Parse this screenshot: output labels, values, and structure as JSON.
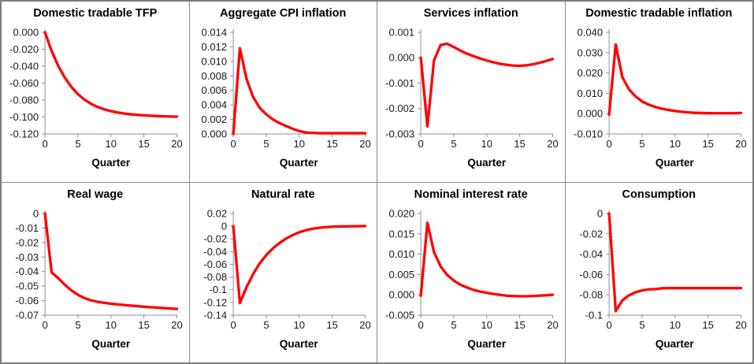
{
  "style": {
    "line_color": "#ff0000",
    "axis_color": "#8f8f8f",
    "text_color": "#191919",
    "title_color": "#000000",
    "panel_border_color": "#8a8a8a",
    "outer_border_color": "#7b7b7b",
    "background": "#ffffff"
  },
  "chart_data": [
    {
      "type": "line",
      "title": "Domestic tradable TFP",
      "xlabel": "Quarter",
      "xlim": [
        0,
        20
      ],
      "ylim": [
        -0.12,
        0
      ],
      "xticks": [
        0,
        5,
        10,
        15,
        20
      ],
      "ytick_values": [
        0,
        -0.02,
        -0.04,
        -0.06,
        -0.08,
        -0.1,
        -0.12
      ],
      "ytick_labels": [
        "0.000",
        "-0.020",
        "-0.040",
        "-0.060",
        "-0.080",
        "-0.100",
        "-0.120"
      ],
      "x": [
        0,
        1,
        2,
        3,
        4,
        5,
        6,
        7,
        8,
        9,
        10,
        11,
        12,
        13,
        14,
        15,
        16,
        17,
        18,
        19,
        20
      ],
      "values": [
        0,
        -0.022,
        -0.0395,
        -0.0535,
        -0.0645,
        -0.073,
        -0.0795,
        -0.0845,
        -0.0882,
        -0.091,
        -0.0931,
        -0.0947,
        -0.0959,
        -0.0968,
        -0.0975,
        -0.0981,
        -0.0985,
        -0.0989,
        -0.0992,
        -0.0994,
        -0.0996
      ]
    },
    {
      "type": "line",
      "title": "Aggregate CPI inflation",
      "xlabel": "Quarter",
      "xlim": [
        0,
        20
      ],
      "ylim": [
        0,
        0.014
      ],
      "xticks": [
        0,
        5,
        10,
        15,
        20
      ],
      "ytick_values": [
        0.014,
        0.012,
        0.01,
        0.008,
        0.006,
        0.004,
        0.002,
        0
      ],
      "ytick_labels": [
        "0.014",
        "0.012",
        "0.010",
        "0.008",
        "0.006",
        "0.004",
        "0.002",
        "0.000"
      ],
      "x": [
        0,
        1,
        2,
        3,
        4,
        5,
        6,
        7,
        8,
        9,
        10,
        11,
        12,
        13,
        14,
        15,
        16,
        17,
        18,
        19,
        20
      ],
      "values": [
        0,
        0.0118,
        0.0076,
        0.0051,
        0.0036,
        0.0027,
        0.002,
        0.0015,
        0.0011,
        0.0007,
        0.0004,
        0.0002,
        0.00015,
        0.0001,
        0.0001,
        0.0001,
        0.0001,
        0.0001,
        0.0001,
        0.0001,
        0.0001
      ]
    },
    {
      "type": "line",
      "title": "Services inflation",
      "xlabel": "Quarter",
      "xlim": [
        0,
        20
      ],
      "ylim": [
        -0.003,
        0.001
      ],
      "xticks": [
        0,
        5,
        10,
        15,
        20
      ],
      "ytick_values": [
        0.001,
        0,
        -0.001,
        -0.002,
        -0.003
      ],
      "ytick_labels": [
        "0.001",
        "0.000",
        "-0.001",
        "-0.002",
        "-0.003"
      ],
      "x": [
        0,
        1,
        2,
        3,
        4,
        5,
        6,
        7,
        8,
        9,
        10,
        11,
        12,
        13,
        14,
        15,
        16,
        17,
        18,
        19,
        20
      ],
      "values": [
        0,
        -0.0027,
        -0.0001,
        0.0005,
        0.00055,
        0.00042,
        0.00028,
        0.00016,
        6e-05,
        -3e-05,
        -0.00011,
        -0.00018,
        -0.00024,
        -0.00028,
        -0.00031,
        -0.00032,
        -0.0003,
        -0.00026,
        -0.0002,
        -0.00013,
        -5e-05
      ]
    },
    {
      "type": "line",
      "title": "Domestic tradable inflation",
      "xlabel": "Quarter",
      "xlim": [
        0,
        20
      ],
      "ylim": [
        -0.01,
        0.04
      ],
      "xticks": [
        0,
        5,
        10,
        15,
        20
      ],
      "ytick_values": [
        0.04,
        0.03,
        0.02,
        0.01,
        0,
        -0.01
      ],
      "ytick_labels": [
        "0.040",
        "0.030",
        "0.020",
        "0.010",
        "0.000",
        "-0.010"
      ],
      "x": [
        0,
        1,
        2,
        3,
        4,
        5,
        6,
        7,
        8,
        9,
        10,
        11,
        12,
        13,
        14,
        15,
        16,
        17,
        18,
        19,
        20
      ],
      "values": [
        -0.0005,
        0.034,
        0.018,
        0.012,
        0.0085,
        0.006,
        0.0044,
        0.0033,
        0.0024,
        0.0018,
        0.0013,
        0.0009,
        0.0006,
        0.0004,
        0.0003,
        0.0002,
        0.0002,
        0.0002,
        0.0002,
        0.0002,
        0.0003
      ]
    },
    {
      "type": "line",
      "title": "Real wage",
      "xlabel": "Quarter",
      "xlim": [
        0,
        20
      ],
      "ylim": [
        -0.07,
        0
      ],
      "xticks": [
        0,
        5,
        10,
        15,
        20
      ],
      "ytick_values": [
        0,
        -0.01,
        -0.02,
        -0.03,
        -0.04,
        -0.05,
        -0.06,
        -0.07
      ],
      "ytick_labels": [
        "0",
        "-0.01",
        "-0.02",
        "-0.03",
        "-0.04",
        "-0.05",
        "-0.06",
        "-0.07"
      ],
      "x": [
        0,
        1,
        2,
        3,
        4,
        5,
        6,
        7,
        8,
        9,
        10,
        11,
        12,
        13,
        14,
        15,
        16,
        17,
        18,
        19,
        20
      ],
      "values": [
        0,
        -0.0405,
        -0.0445,
        -0.049,
        -0.053,
        -0.056,
        -0.0583,
        -0.0598,
        -0.0608,
        -0.0615,
        -0.0621,
        -0.0626,
        -0.063,
        -0.0634,
        -0.0638,
        -0.0642,
        -0.0645,
        -0.0648,
        -0.0651,
        -0.0654,
        -0.0657
      ]
    },
    {
      "type": "line",
      "title": "Natural rate",
      "xlabel": "Quarter",
      "xlim": [
        0,
        20
      ],
      "ylim": [
        -0.14,
        0.02
      ],
      "xticks": [
        0,
        5,
        10,
        15,
        20
      ],
      "ytick_values": [
        0.02,
        0,
        -0.02,
        -0.04,
        -0.06,
        -0.08,
        -0.1,
        -0.12,
        -0.14
      ],
      "ytick_labels": [
        "0.02",
        "0",
        "-0.02",
        "-0.04",
        "-0.06",
        "-0.08",
        "-0.1",
        "-0.12",
        "-0.14"
      ],
      "x": [
        0,
        1,
        2,
        3,
        4,
        5,
        6,
        7,
        8,
        9,
        10,
        11,
        12,
        13,
        14,
        15,
        16,
        17,
        18,
        19,
        20
      ],
      "values": [
        0,
        -0.121,
        -0.096,
        -0.0755,
        -0.0585,
        -0.0455,
        -0.035,
        -0.0265,
        -0.0195,
        -0.014,
        -0.0095,
        -0.0063,
        -0.004,
        -0.0025,
        -0.0015,
        -0.0008,
        -0.0004,
        -0.0002,
        -0.0001,
        0,
        0.0003
      ]
    },
    {
      "type": "line",
      "title": "Nominal interest rate",
      "xlabel": "Quarter",
      "xlim": [
        0,
        20
      ],
      "ylim": [
        -0.005,
        0.02
      ],
      "xticks": [
        0,
        5,
        10,
        15,
        20
      ],
      "ytick_values": [
        0.02,
        0.015,
        0.01,
        0.005,
        0,
        -0.005
      ],
      "ytick_labels": [
        "0.020",
        "0.015",
        "0.010",
        "0.005",
        "0.000",
        "-0.005"
      ],
      "x": [
        0,
        1,
        2,
        3,
        4,
        5,
        6,
        7,
        8,
        9,
        10,
        11,
        12,
        13,
        14,
        15,
        16,
        17,
        18,
        19,
        20
      ],
      "values": [
        -0.0002,
        0.0177,
        0.0105,
        0.007,
        0.0049,
        0.0035,
        0.0025,
        0.0018,
        0.0012,
        0.0008,
        0.0005,
        0.0002,
        0,
        -0.0002,
        -0.0003,
        -0.00035,
        -0.00035,
        -0.0003,
        -0.0002,
        -0.0001,
        0
      ]
    },
    {
      "type": "line",
      "title": "Consumption",
      "xlabel": "Quarter",
      "xlim": [
        0,
        20
      ],
      "ylim": [
        -0.1,
        0
      ],
      "xticks": [
        0,
        5,
        10,
        15,
        20
      ],
      "ytick_values": [
        0,
        -0.02,
        -0.04,
        -0.06,
        -0.08,
        -0.1
      ],
      "ytick_labels": [
        "0",
        "-0.02",
        "-0.04",
        "-0.06",
        "-0.08",
        "-0.1"
      ],
      "x": [
        0,
        1,
        2,
        3,
        4,
        5,
        6,
        7,
        8,
        9,
        10,
        11,
        12,
        13,
        14,
        15,
        16,
        17,
        18,
        19,
        20
      ],
      "values": [
        0,
        -0.096,
        -0.0855,
        -0.0805,
        -0.0775,
        -0.0757,
        -0.0746,
        -0.0744,
        -0.0736,
        -0.0734,
        -0.0734,
        -0.0734,
        -0.0734,
        -0.0734,
        -0.0734,
        -0.0734,
        -0.0734,
        -0.0734,
        -0.0734,
        -0.0734,
        -0.0734
      ]
    }
  ]
}
